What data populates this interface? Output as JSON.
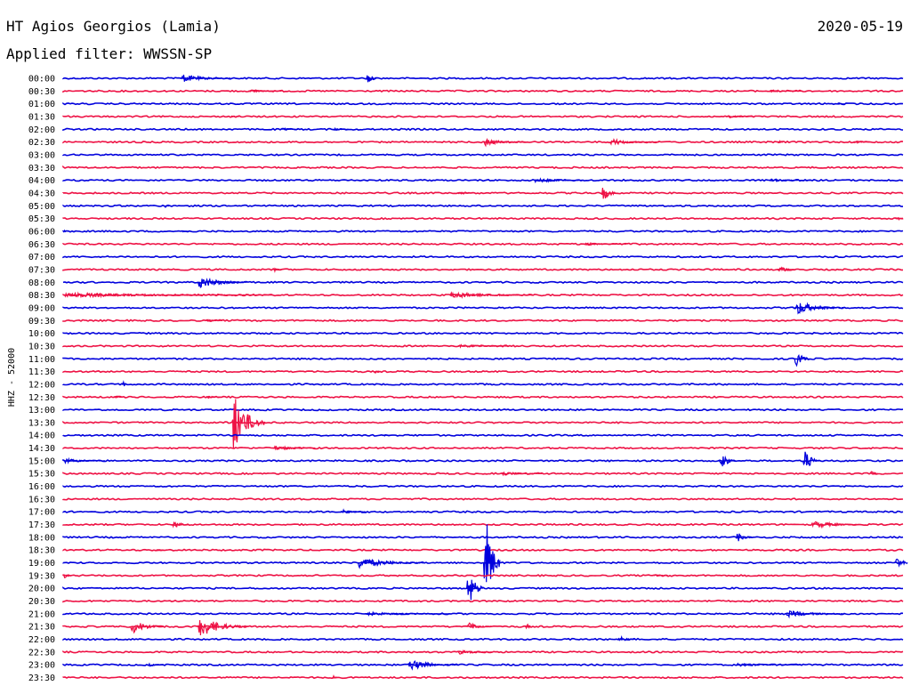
{
  "header": {
    "station": "HT Agios Georgios (Lamia)",
    "date": "2020-05-19",
    "filter": "Applied filter: WWSSN-SP"
  },
  "chart_data": {
    "type": "line",
    "title": "HT Agios Georgios (Lamia)",
    "ylabel": "HHZ - 52000",
    "colors": [
      "#0000dd",
      "#ee1144"
    ],
    "rows": [
      "00:00",
      "00:30",
      "01:00",
      "01:30",
      "02:00",
      "02:30",
      "03:00",
      "03:30",
      "04:00",
      "04:30",
      "05:00",
      "05:30",
      "06:00",
      "06:30",
      "07:00",
      "07:30",
      "08:00",
      "08:30",
      "09:00",
      "09:30",
      "10:00",
      "10:30",
      "11:00",
      "11:30",
      "12:00",
      "12:30",
      "13:00",
      "13:30",
      "14:00",
      "14:30",
      "15:00",
      "15:30",
      "16:00",
      "16:30",
      "17:00",
      "17:30",
      "18:00",
      "18:30",
      "19:00",
      "19:30",
      "20:00",
      "20:30",
      "21:00",
      "21:30",
      "22:00",
      "22:30",
      "23:00",
      "23:30"
    ],
    "events": [
      {
        "row": 0,
        "t": 0.14,
        "amp": 5,
        "dur": 0.06
      },
      {
        "row": 0,
        "t": 0.36,
        "amp": 10,
        "dur": 0.015
      },
      {
        "row": 1,
        "t": 0.22,
        "amp": 2,
        "dur": 0.04
      },
      {
        "row": 1,
        "t": 0.84,
        "amp": 2,
        "dur": 0.04
      },
      {
        "row": 2,
        "t": 0.92,
        "amp": 2,
        "dur": 0.01
      },
      {
        "row": 3,
        "t": 0.2,
        "amp": 2,
        "dur": 0.01
      },
      {
        "row": 3,
        "t": 0.79,
        "amp": 2,
        "dur": 0.03
      },
      {
        "row": 4,
        "t": 0.26,
        "amp": 2,
        "dur": 0.02
      },
      {
        "row": 4,
        "t": 0.32,
        "amp": 2,
        "dur": 0.02
      },
      {
        "row": 5,
        "t": 0.5,
        "amp": 5,
        "dur": 0.05
      },
      {
        "row": 5,
        "t": 0.65,
        "amp": 4,
        "dur": 0.06
      },
      {
        "row": 5,
        "t": 0.85,
        "amp": 5,
        "dur": 0.005
      },
      {
        "row": 5,
        "t": 0.94,
        "amp": 2,
        "dur": 0.02
      },
      {
        "row": 8,
        "t": 0.56,
        "amp": 3,
        "dur": 0.06
      },
      {
        "row": 8,
        "t": 0.84,
        "amp": 2,
        "dur": 0.05
      },
      {
        "row": 9,
        "t": 0.47,
        "amp": 2,
        "dur": 0.02
      },
      {
        "row": 9,
        "t": 0.64,
        "amp": 13,
        "dur": 0.02
      },
      {
        "row": 10,
        "t": 0.12,
        "amp": 5,
        "dur": 0.006
      },
      {
        "row": 11,
        "t": 0.99,
        "amp": 5,
        "dur": 0.01
      },
      {
        "row": 12,
        "t": 0.0,
        "amp": 3,
        "dur": 0.006
      },
      {
        "row": 12,
        "t": 0.14,
        "amp": 2,
        "dur": 0.01
      },
      {
        "row": 13,
        "t": 0.62,
        "amp": 2,
        "dur": 0.05
      },
      {
        "row": 15,
        "t": 0.25,
        "amp": 4,
        "dur": 0.01
      },
      {
        "row": 15,
        "t": 0.85,
        "amp": 6,
        "dur": 0.02
      },
      {
        "row": 16,
        "t": 0.16,
        "amp": 8,
        "dur": 0.06
      },
      {
        "row": 17,
        "t": 0.0,
        "amp": 3,
        "dur": 0.25
      },
      {
        "row": 17,
        "t": 0.46,
        "amp": 4,
        "dur": 0.1
      },
      {
        "row": 18,
        "t": 0.87,
        "amp": 9,
        "dur": 0.06
      },
      {
        "row": 19,
        "t": 0.17,
        "amp": 2,
        "dur": 0.02
      },
      {
        "row": 21,
        "t": 0.47,
        "amp": 2,
        "dur": 0.06
      },
      {
        "row": 22,
        "t": 0.87,
        "amp": 12,
        "dur": 0.02
      },
      {
        "row": 23,
        "t": 0.37,
        "amp": 6,
        "dur": 0.006
      },
      {
        "row": 24,
        "t": 0.07,
        "amp": 7,
        "dur": 0.002
      },
      {
        "row": 25,
        "t": 0.06,
        "amp": 2,
        "dur": 0.01
      },
      {
        "row": 25,
        "t": 0.17,
        "amp": 2,
        "dur": 0.02
      },
      {
        "row": 27,
        "t": 0.2,
        "amp": 42,
        "dur": 0.04
      },
      {
        "row": 28,
        "t": 0.38,
        "amp": 2,
        "dur": 0.01
      },
      {
        "row": 29,
        "t": 0.25,
        "amp": 3,
        "dur": 0.05
      },
      {
        "row": 30,
        "t": 0.0,
        "amp": 3,
        "dur": 0.05
      },
      {
        "row": 30,
        "t": 0.78,
        "amp": 15,
        "dur": 0.02
      },
      {
        "row": 30,
        "t": 0.88,
        "amp": 18,
        "dur": 0.02
      },
      {
        "row": 31,
        "t": 0.52,
        "amp": 3,
        "dur": 0.05
      },
      {
        "row": 31,
        "t": 0.96,
        "amp": 6,
        "dur": 0.01
      },
      {
        "row": 34,
        "t": 0.33,
        "amp": 3,
        "dur": 0.03
      },
      {
        "row": 35,
        "t": 0.13,
        "amp": 6,
        "dur": 0.02
      },
      {
        "row": 35,
        "t": 0.89,
        "amp": 5,
        "dur": 0.06
      },
      {
        "row": 36,
        "t": 0.8,
        "amp": 8,
        "dur": 0.02
      },
      {
        "row": 37,
        "t": 0.11,
        "amp": 2,
        "dur": 0.01
      },
      {
        "row": 38,
        "t": 0.35,
        "amp": 7,
        "dur": 0.08
      },
      {
        "row": 38,
        "t": 0.99,
        "amp": 12,
        "dur": 0.015
      },
      {
        "row": 38,
        "t": 0.5,
        "amp": 82,
        "dur": 0.02
      },
      {
        "row": 39,
        "t": 0.0,
        "amp": 6,
        "dur": 0.01
      },
      {
        "row": 39,
        "t": 0.7,
        "amp": 2,
        "dur": 0.02
      },
      {
        "row": 40,
        "t": 0.48,
        "amp": 32,
        "dur": 0.02
      },
      {
        "row": 42,
        "t": 0.36,
        "amp": 2,
        "dur": 0.1
      },
      {
        "row": 42,
        "t": 0.86,
        "amp": 4,
        "dur": 0.07
      },
      {
        "row": 43,
        "t": 0.08,
        "amp": 10,
        "dur": 0.04
      },
      {
        "row": 43,
        "t": 0.16,
        "amp": 14,
        "dur": 0.06
      },
      {
        "row": 43,
        "t": 0.48,
        "amp": 6,
        "dur": 0.03
      },
      {
        "row": 43,
        "t": 0.55,
        "amp": 10,
        "dur": 0.005
      },
      {
        "row": 44,
        "t": 0.29,
        "amp": 3,
        "dur": 0.006
      },
      {
        "row": 44,
        "t": 0.66,
        "amp": 5,
        "dur": 0.02
      },
      {
        "row": 45,
        "t": 0.47,
        "amp": 3,
        "dur": 0.04
      },
      {
        "row": 46,
        "t": 0.1,
        "amp": 3,
        "dur": 0.02
      },
      {
        "row": 46,
        "t": 0.41,
        "amp": 7,
        "dur": 0.06
      },
      {
        "row": 46,
        "t": 0.8,
        "amp": 2,
        "dur": 0.08
      },
      {
        "row": 47,
        "t": 0.32,
        "amp": 5,
        "dur": 0.006
      }
    ]
  }
}
